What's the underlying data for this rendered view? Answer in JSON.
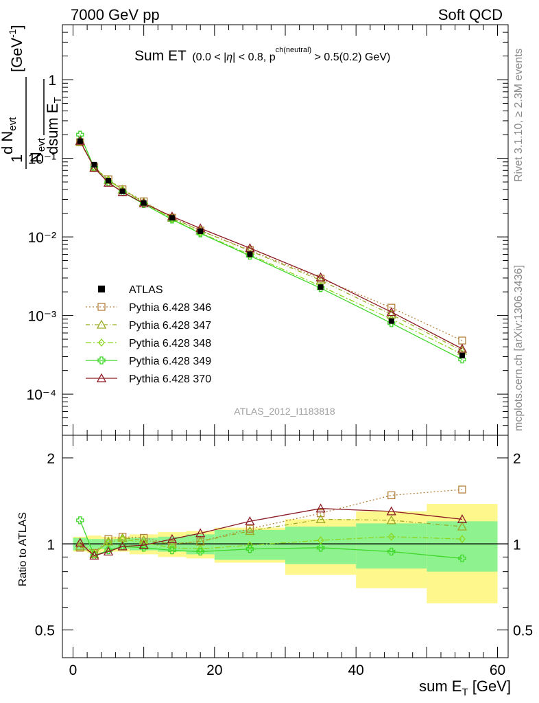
{
  "header": {
    "left": "7000 GeV pp",
    "right": "Soft QCD"
  },
  "side_labels": {
    "top": "Rivet 3.1.10, ≥ 2.3M events",
    "bottom": "mcplots.cern.ch [arXiv:1306.3436]"
  },
  "chart_data": {
    "type": "line",
    "title": "Sum ET",
    "subtitle_parts": {
      "a": "(0.0 < |",
      "eta": "η",
      "b": "| < 0.8, p",
      "sup": "ch(neutral)",
      "c": " > 0.5(0.2) GeV)"
    },
    "watermark": "ATLAS_2012_I1183818",
    "xlabel": "sum E",
    "xlabel_sub": "T",
    "xlabel_unit": " [GeV]",
    "ylabel": "1/N_evt dN_evt/dsum E_T [GeV^-1]",
    "ylabel_parts": {
      "one": "1",
      "n": "N",
      "evt": "evt",
      "dn": "d N",
      "dsum": "dsum E",
      "t": "T",
      "unit": "[GeV",
      "unit_sup": "-1",
      "unit_close": "]"
    },
    "ratio_ylabel": "Ratio to ATLAS",
    "xlim": [
      -1.5,
      61.5
    ],
    "ylim": [
      3e-05,
      5
    ],
    "ylog": true,
    "ratio_ylim": [
      0.4,
      2.4
    ],
    "legend_position": "bottom-left",
    "x_ticks": [
      "0",
      "20",
      "40",
      "60"
    ],
    "y_ticks": [
      "10⁻⁴",
      "10⁻³",
      "10⁻²",
      "10⁻¹",
      "1"
    ],
    "ratio_ticks": [
      "0.5",
      "1",
      "2"
    ],
    "x": [
      1,
      3,
      5,
      7,
      10,
      14,
      18,
      25,
      35,
      45,
      55
    ],
    "bin_edges": [
      0,
      2,
      4,
      6,
      8,
      12,
      16,
      20,
      30,
      40,
      50,
      60
    ],
    "data": {
      "name": "ATLAS",
      "values": [
        0.165,
        0.083,
        0.052,
        0.038,
        0.027,
        0.0175,
        0.0118,
        0.006,
        0.0023,
        0.00085,
        0.00031
      ]
    },
    "band_inner": [
      0.05,
      0.04,
      0.04,
      0.04,
      0.05,
      0.06,
      0.08,
      0.12,
      0.15,
      0.18,
      0.2
    ],
    "band_outer": [
      0.06,
      0.07,
      0.06,
      0.06,
      0.08,
      0.1,
      0.11,
      0.14,
      0.22,
      0.3,
      0.38
    ],
    "series": [
      {
        "name": "Pythia 6.428 346",
        "color": "#b5813c",
        "dash": "2,3",
        "marker": "square",
        "ratio": [
          0.97,
          0.93,
          1.04,
          1.06,
          1.05,
          1.0,
          1.02,
          1.13,
          1.28,
          1.48,
          1.55
        ]
      },
      {
        "name": "Pythia 6.428 347",
        "color": "#9aaa26",
        "dash": "6,3,1,3",
        "marker": "triangle",
        "ratio": [
          0.98,
          0.92,
          1.02,
          1.05,
          1.03,
          1.0,
          1.02,
          1.11,
          1.22,
          1.21,
          1.15
        ]
      },
      {
        "name": "Pythia 6.428 348",
        "color": "#8cd61e",
        "dash": "8,3,2,3",
        "marker": "diamond",
        "ratio": [
          1.01,
          0.93,
          1.01,
          1.04,
          1.01,
          0.97,
          0.96,
          0.99,
          1.03,
          1.06,
          1.04
        ]
      },
      {
        "name": "Pythia 6.428 349",
        "color": "#3ed628",
        "dash": "",
        "marker": "cross",
        "ratio": [
          1.21,
          0.91,
          0.95,
          0.98,
          0.97,
          0.95,
          0.94,
          0.96,
          0.97,
          0.94,
          0.89
        ]
      },
      {
        "name": "Pythia 6.428 370",
        "color": "#8b1a24",
        "dash": "",
        "marker": "triangle",
        "ratio": [
          1.01,
          0.91,
          0.94,
          0.98,
          0.99,
          1.04,
          1.09,
          1.2,
          1.33,
          1.3,
          1.22
        ]
      }
    ]
  }
}
